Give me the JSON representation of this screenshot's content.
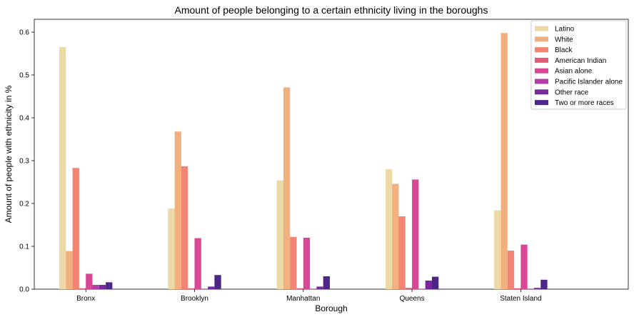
{
  "chart_data": {
    "type": "bar",
    "title": "Amount of people belonging to a certain ethnicity living in the boroughs",
    "xlabel": "Borough",
    "ylabel": "Amount of people with ethnicity in %",
    "categories": [
      "Bronx",
      "Brooklyn",
      "Manhattan",
      "Queens",
      "Staten Island"
    ],
    "ylim": [
      0,
      0.63
    ],
    "yticks": [
      "0.0",
      "0.1",
      "0.2",
      "0.3",
      "0.4",
      "0.5",
      "0.6"
    ],
    "grid": false,
    "legend_position": "top-right",
    "series": [
      {
        "name": "Latino",
        "color": "#ecd9a6",
        "values": [
          0.565,
          0.188,
          0.254,
          0.28,
          0.184
        ]
      },
      {
        "name": "White",
        "color": "#f2b07e",
        "values": [
          0.089,
          0.368,
          0.471,
          0.246,
          0.598
        ]
      },
      {
        "name": "Black",
        "color": "#f28471",
        "values": [
          0.283,
          0.287,
          0.122,
          0.17,
          0.09
        ]
      },
      {
        "name": "American Indian",
        "color": "#e65a77",
        "values": [
          0.002,
          0.002,
          0.002,
          0.003,
          0.002
        ]
      },
      {
        "name": "Asian alone",
        "color": "#d94896",
        "values": [
          0.036,
          0.119,
          0.12,
          0.256,
          0.104
        ]
      },
      {
        "name": "Pacific Islander alone",
        "color": "#b43ea8",
        "values": [
          0.01,
          0.0003,
          0.0004,
          0.0005,
          0.0003
        ]
      },
      {
        "name": "Other race",
        "color": "#78299c",
        "values": [
          0.01,
          0.006,
          0.006,
          0.02,
          0.003
        ]
      },
      {
        "name": "Two or more races",
        "color": "#4c2788",
        "values": [
          0.016,
          0.033,
          0.03,
          0.029,
          0.022
        ]
      }
    ]
  }
}
